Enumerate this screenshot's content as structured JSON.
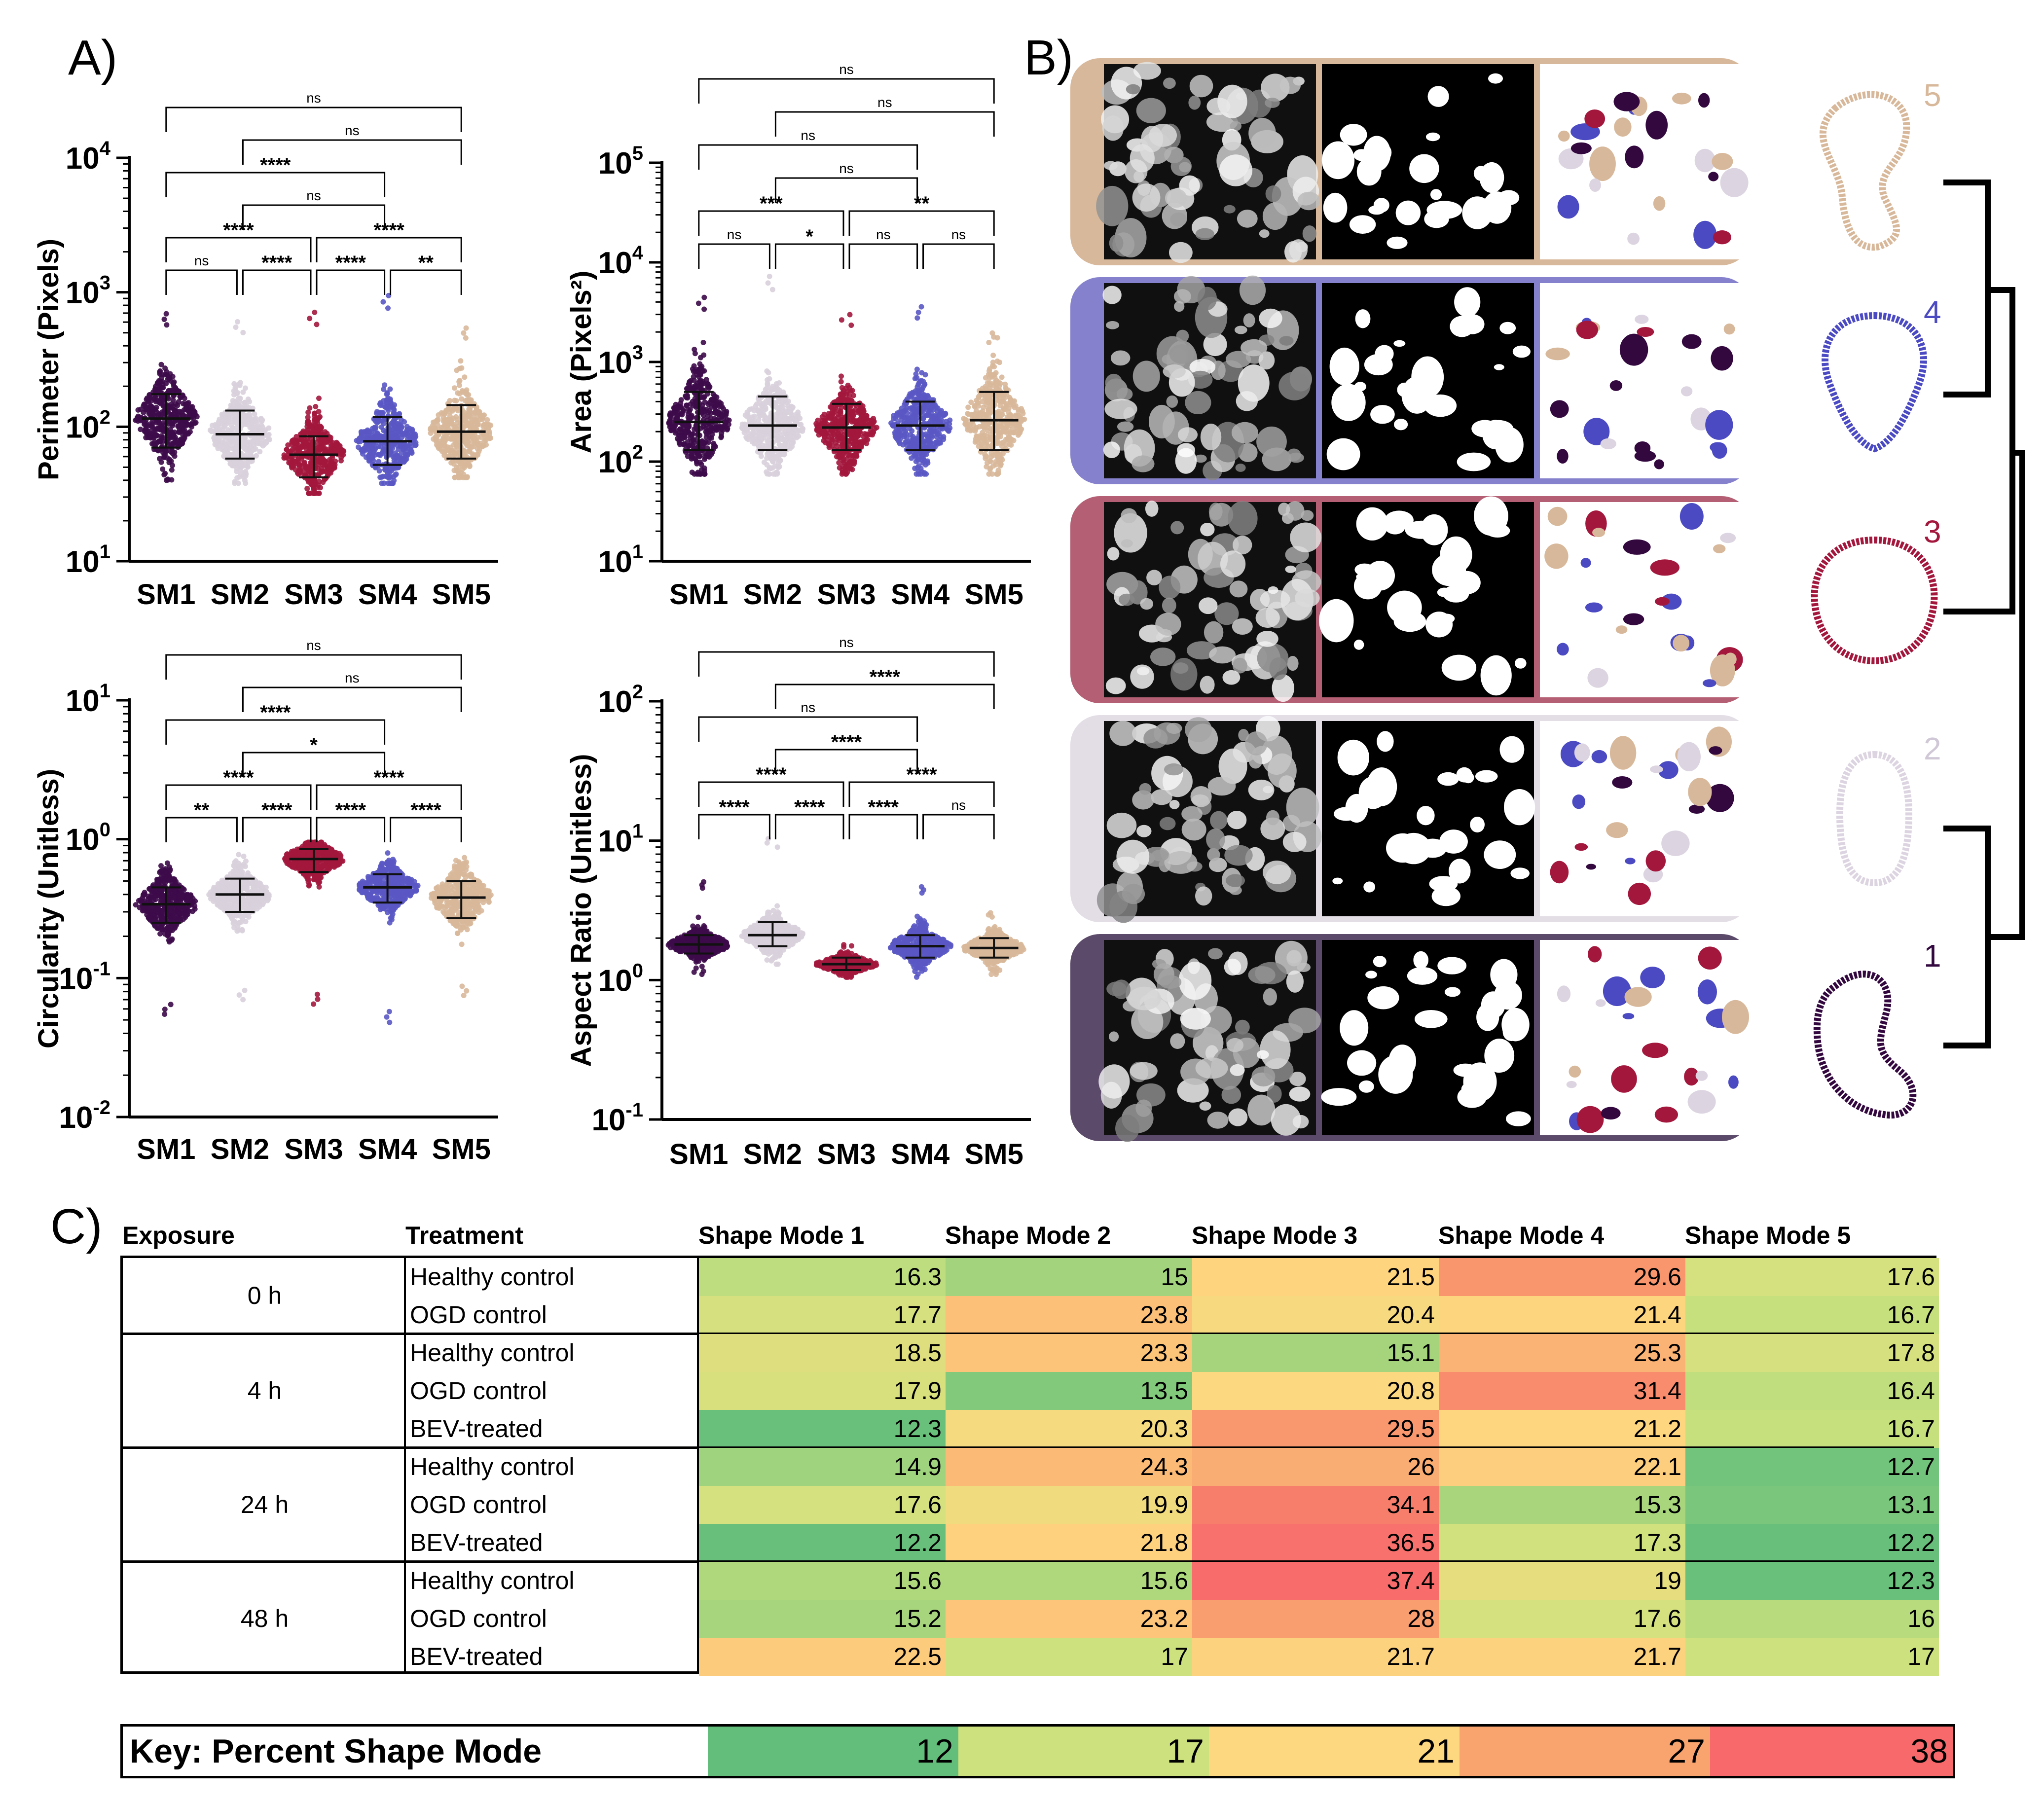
{
  "panel_labels": {
    "a": "A)",
    "b": "B)",
    "c": "C)"
  },
  "chart_data": [
    {
      "type": "scatter",
      "ylabel": "Perimeter (Pixels)",
      "categories": [
        "SM1",
        "SM2",
        "SM3",
        "SM4",
        "SM5"
      ],
      "colors": [
        "#3d0a4a",
        "#d8d0dc",
        "#a3173d",
        "#5a58c4",
        "#d8b89a"
      ],
      "y_scale": "log",
      "ylim": [
        10,
        10000
      ],
      "yticks": [
        {
          "base": "10",
          "exp": "1"
        },
        {
          "base": "10",
          "exp": "2"
        },
        {
          "base": "10",
          "exp": "3"
        },
        {
          "base": "10",
          "exp": "4"
        }
      ],
      "median": [
        115,
        88,
        62,
        78,
        92
      ],
      "lower": [
        70,
        58,
        42,
        52,
        58
      ],
      "upper": [
        175,
        132,
        85,
        118,
        145
      ],
      "range_min": [
        40,
        38,
        32,
        38,
        42
      ],
      "range_max": [
        950,
        820,
        1000,
        1350,
        720
      ],
      "brackets": [
        {
          "a": 0,
          "b": 4,
          "label": "ns"
        },
        {
          "a": 1,
          "b": 4,
          "label": "ns"
        },
        {
          "a": 0,
          "b": 3,
          "label": "****"
        },
        {
          "a": 1,
          "b": 3,
          "label": "ns"
        },
        {
          "a": 0,
          "b": 2,
          "label": "****"
        },
        {
          "a": 2,
          "b": 4,
          "label": "****"
        },
        {
          "a": 0,
          "b": 1,
          "label": "ns"
        },
        {
          "a": 1,
          "b": 2,
          "label": "****"
        },
        {
          "a": 2,
          "b": 3,
          "label": "****"
        },
        {
          "a": 3,
          "b": 4,
          "label": "**"
        }
      ]
    },
    {
      "type": "scatter",
      "ylabel": "Area (Pixels²)",
      "categories": [
        "SM1",
        "SM2",
        "SM3",
        "SM4",
        "SM5"
      ],
      "colors": [
        "#3d0a4a",
        "#d8d0dc",
        "#a3173d",
        "#5a58c4",
        "#d8b89a"
      ],
      "y_scale": "log",
      "ylim": [
        10,
        100000
      ],
      "yticks": [
        {
          "base": "10",
          "exp": "1"
        },
        {
          "base": "10",
          "exp": "2"
        },
        {
          "base": "10",
          "exp": "3"
        },
        {
          "base": "10",
          "exp": "4"
        },
        {
          "base": "10",
          "exp": "5"
        }
      ],
      "median": [
        250,
        230,
        220,
        230,
        260
      ],
      "lower": [
        130,
        130,
        130,
        130,
        130
      ],
      "upper": [
        500,
        450,
        380,
        400,
        500
      ],
      "range_min": [
        75,
        75,
        75,
        75,
        75
      ],
      "range_max": [
        7000,
        12000,
        4500,
        5500,
        2800
      ],
      "brackets": [
        {
          "a": 0,
          "b": 4,
          "label": "ns"
        },
        {
          "a": 1,
          "b": 4,
          "label": "ns"
        },
        {
          "a": 0,
          "b": 3,
          "label": "ns"
        },
        {
          "a": 1,
          "b": 3,
          "label": "ns"
        },
        {
          "a": 0,
          "b": 2,
          "label": "***"
        },
        {
          "a": 2,
          "b": 4,
          "label": "**"
        },
        {
          "a": 0,
          "b": 1,
          "label": "ns"
        },
        {
          "a": 1,
          "b": 2,
          "label": "*"
        },
        {
          "a": 2,
          "b": 3,
          "label": "ns"
        },
        {
          "a": 3,
          "b": 4,
          "label": "ns"
        }
      ]
    },
    {
      "type": "scatter",
      "ylabel": "Circularity (Unitless)",
      "categories": [
        "SM1",
        "SM2",
        "SM3",
        "SM4",
        "SM5"
      ],
      "colors": [
        "#3d0a4a",
        "#d8d0dc",
        "#a3173d",
        "#5a58c4",
        "#d8b89a"
      ],
      "y_scale": "log",
      "ylim": [
        0.01,
        10
      ],
      "yticks": [
        {
          "base": "10",
          "exp": "-2"
        },
        {
          "base": "10",
          "exp": "-1"
        },
        {
          "base": "10",
          "exp": "0"
        },
        {
          "base": "10",
          "exp": "1"
        }
      ],
      "median": [
        0.34,
        0.4,
        0.72,
        0.45,
        0.38
      ],
      "lower": [
        0.25,
        0.3,
        0.58,
        0.35,
        0.27
      ],
      "upper": [
        0.45,
        0.52,
        0.85,
        0.56,
        0.5
      ],
      "range_min": [
        0.055,
        0.07,
        0.065,
        0.048,
        0.075
      ],
      "range_max": [
        0.8,
        0.9,
        0.95,
        0.95,
        0.95
      ],
      "brackets": [
        {
          "a": 0,
          "b": 4,
          "label": "ns"
        },
        {
          "a": 1,
          "b": 4,
          "label": "ns"
        },
        {
          "a": 0,
          "b": 3,
          "label": "****"
        },
        {
          "a": 1,
          "b": 3,
          "label": "*"
        },
        {
          "a": 0,
          "b": 2,
          "label": "****"
        },
        {
          "a": 2,
          "b": 4,
          "label": "****"
        },
        {
          "a": 0,
          "b": 1,
          "label": "**"
        },
        {
          "a": 1,
          "b": 2,
          "label": "****"
        },
        {
          "a": 2,
          "b": 3,
          "label": "****"
        },
        {
          "a": 3,
          "b": 4,
          "label": "****"
        }
      ]
    },
    {
      "type": "scatter",
      "ylabel": "Aspect Ratio (Unitless)",
      "categories": [
        "SM1",
        "SM2",
        "SM3",
        "SM4",
        "SM5"
      ],
      "colors": [
        "#3d0a4a",
        "#d8d0dc",
        "#a3173d",
        "#5a58c4",
        "#d8b89a"
      ],
      "y_scale": "log",
      "ylim": [
        0.1,
        100
      ],
      "yticks": [
        {
          "base": "10",
          "exp": "-1"
        },
        {
          "base": "10",
          "exp": "0"
        },
        {
          "base": "10",
          "exp": "1"
        },
        {
          "base": "10",
          "exp": "2"
        }
      ],
      "median": [
        1.8,
        2.1,
        1.3,
        1.75,
        1.7
      ],
      "lower": [
        1.55,
        1.75,
        1.18,
        1.45,
        1.45
      ],
      "upper": [
        2.1,
        2.6,
        1.45,
        2.1,
        2.0
      ],
      "range_min": [
        1.1,
        1.3,
        1.05,
        1.05,
        1.1
      ],
      "range_max": [
        6.0,
        13.0,
        1.9,
        5.5,
        3.4
      ],
      "brackets": [
        {
          "a": 0,
          "b": 4,
          "label": "ns"
        },
        {
          "a": 1,
          "b": 4,
          "label": "****"
        },
        {
          "a": 0,
          "b": 3,
          "label": "ns"
        },
        {
          "a": 1,
          "b": 3,
          "label": "****"
        },
        {
          "a": 0,
          "b": 2,
          "label": "****"
        },
        {
          "a": 2,
          "b": 4,
          "label": "****"
        },
        {
          "a": 0,
          "b": 1,
          "label": "****"
        },
        {
          "a": 1,
          "b": 2,
          "label": "****"
        },
        {
          "a": 2,
          "b": 3,
          "label": "****"
        },
        {
          "a": 3,
          "b": 4,
          "label": "ns"
        }
      ]
    },
    {
      "type": "table",
      "columns": [
        "Exposure",
        "Treatment",
        "Shape Mode 1",
        "Shape Mode 2",
        "Shape Mode 3",
        "Shape Mode 4",
        "Shape Mode 5"
      ],
      "groups": [
        {
          "exposure": "0 h",
          "rows": [
            {
              "treatment": "Healthy control",
              "values": [
                16.3,
                15,
                21.5,
                29.6,
                17.6
              ]
            },
            {
              "treatment": "OGD control",
              "values": [
                17.7,
                23.8,
                20.4,
                21.4,
                16.7
              ]
            }
          ]
        },
        {
          "exposure": "4 h",
          "rows": [
            {
              "treatment": "Healthy control",
              "values": [
                18.5,
                23.3,
                15.1,
                25.3,
                17.8
              ]
            },
            {
              "treatment": "OGD control",
              "values": [
                17.9,
                13.5,
                20.8,
                31.4,
                16.4
              ]
            },
            {
              "treatment": "BEV-treated",
              "values": [
                12.3,
                20.3,
                29.5,
                21.2,
                16.7
              ]
            }
          ]
        },
        {
          "exposure": "24 h",
          "rows": [
            {
              "treatment": "Healthy control",
              "values": [
                14.9,
                24.3,
                26,
                22.1,
                12.7
              ]
            },
            {
              "treatment": "OGD control",
              "values": [
                17.6,
                19.9,
                34.1,
                15.3,
                13.1
              ]
            },
            {
              "treatment": "BEV-treated",
              "values": [
                12.2,
                21.8,
                36.5,
                17.3,
                12.2
              ]
            }
          ]
        },
        {
          "exposure": "48 h",
          "rows": [
            {
              "treatment": "Healthy control",
              "values": [
                15.6,
                15.6,
                37.4,
                19,
                12.3
              ]
            },
            {
              "treatment": "OGD control",
              "values": [
                15.2,
                23.2,
                28,
                17.6,
                16
              ]
            },
            {
              "treatment": "BEV-treated",
              "values": [
                22.5,
                17,
                21.7,
                21.7,
                17
              ]
            }
          ]
        }
      ],
      "key": {
        "title": "Key: Percent Shape Mode",
        "stops": [
          12,
          17,
          21,
          27,
          38
        ],
        "colors": [
          "#63be7b",
          "#cde27e",
          "#fed880",
          "#f9a46f",
          "#f8696b"
        ]
      }
    }
  ],
  "panel_b": {
    "frame_colors": [
      "#d8b89a",
      "#8681cc",
      "#b45f73",
      "#e3dde6",
      "#5c4a6a"
    ],
    "mode_labels": [
      "5",
      "4",
      "3",
      "2",
      "1"
    ],
    "outline_colors": [
      "#d8b89a",
      "#4b4ac2",
      "#a3173d",
      "#dcd4e0",
      "#33083f"
    ]
  }
}
